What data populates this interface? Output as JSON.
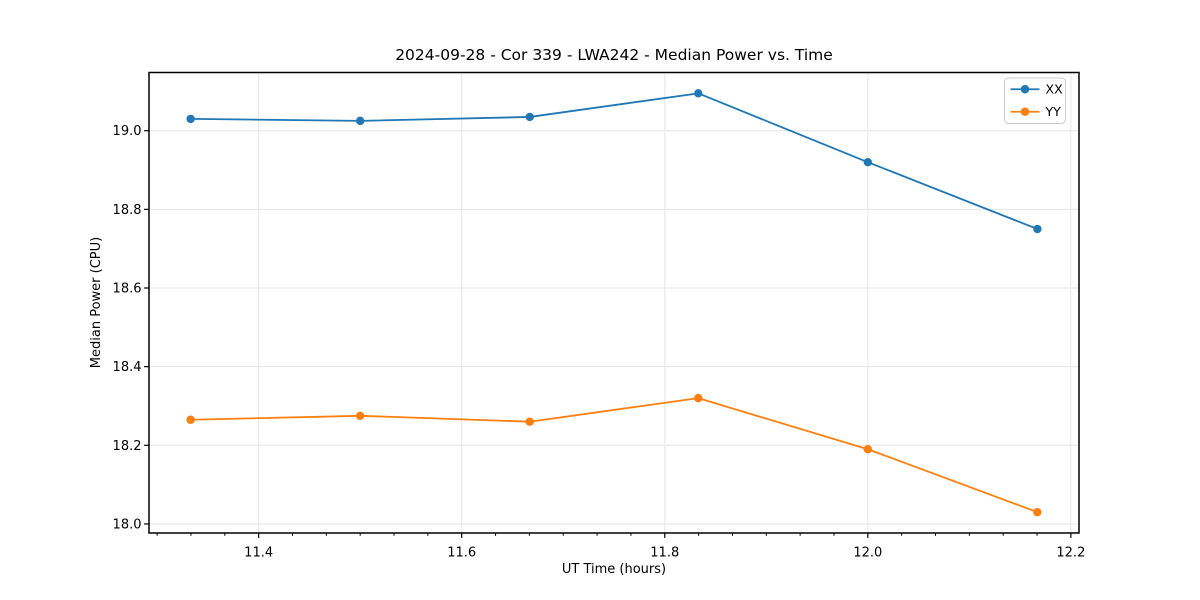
{
  "chart_data": {
    "type": "line",
    "title": "2024-09-28 - Cor 339 - LWA242 - Median Power vs. Time",
    "xlabel": "UT Time (hours)",
    "ylabel": "Median Power (CPU)",
    "xlim": [
      11.292,
      12.208
    ],
    "ylim": [
      17.977,
      19.148
    ],
    "xticks": [
      11.4,
      11.6,
      11.8,
      12.0,
      12.2
    ],
    "yticks": [
      18.0,
      18.2,
      18.4,
      18.6,
      18.8,
      19.0
    ],
    "x_minor_divisions": 6,
    "grid": true,
    "legend": {
      "position": "upper right",
      "entries": [
        "XX",
        "YY"
      ]
    },
    "x": [
      11.333,
      11.5,
      11.667,
      11.833,
      12.0,
      12.167
    ],
    "series": [
      {
        "name": "XX",
        "color": "#1f77b4",
        "marker": "circle",
        "values": [
          19.03,
          19.025,
          19.035,
          19.095,
          18.92,
          18.75
        ]
      },
      {
        "name": "YY",
        "color": "#ff7f0e",
        "marker": "circle",
        "values": [
          18.265,
          18.275,
          18.26,
          18.32,
          18.19,
          18.03
        ]
      }
    ],
    "colors": {
      "grid": "#e6e6e6",
      "axis": "#000000",
      "text": "#000000",
      "legend_border": "#cccccc",
      "background": "#ffffff"
    }
  }
}
